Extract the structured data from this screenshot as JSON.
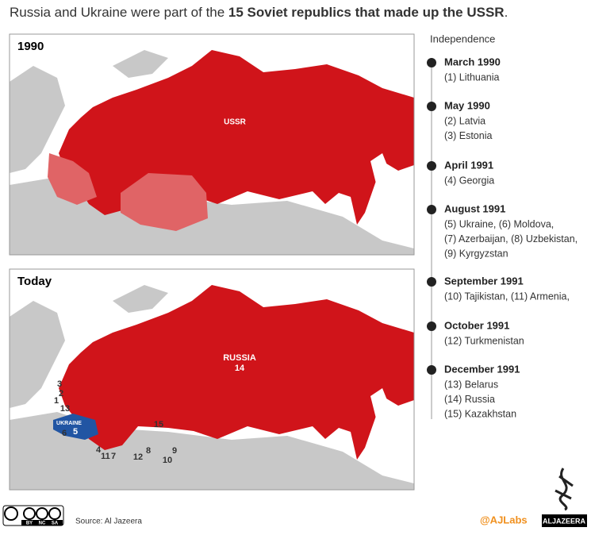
{
  "title": {
    "prefix": "Russia and Ukraine were part of the ",
    "bold": "15 Soviet republics that made up the USSR",
    "suffix": "."
  },
  "map_1990": {
    "label": "1990",
    "country_label": "USSR"
  },
  "map_today": {
    "label": "Today",
    "russia_label": "RUSSIA",
    "russia_number": "14",
    "ukraine_label": "UKRAINE",
    "ukraine_number": "5",
    "numbers": [
      "3",
      "2",
      "1",
      "13",
      "6",
      "4",
      "11",
      "7",
      "12",
      "8",
      "9",
      "10",
      "15"
    ]
  },
  "timeline": {
    "heading": "Independence",
    "events": [
      {
        "date": "March 1990",
        "lines": [
          "(1) Lithuania"
        ]
      },
      {
        "date": "May 1990",
        "lines": [
          "(2) Latvia",
          "(3) Estonia"
        ]
      },
      {
        "date": "April 1991",
        "lines": [
          "(4) Georgia"
        ]
      },
      {
        "date": "August 1991",
        "lines": [
          "(5) Ukraine,  (6) Moldova,",
          "(7) Azerbaijan, (8) Uzbekistan,",
          "(9) Kyrgyzstan"
        ]
      },
      {
        "date": "September 1991",
        "lines": [
          "(10) Tajikistan, (11) Armenia,"
        ]
      },
      {
        "date": "October 1991",
        "lines": [
          "(12) Turkmenistan"
        ]
      },
      {
        "date": "December 1991",
        "lines": [
          "(13) Belarus",
          "(14) Russia",
          "(15) Kazakhstan"
        ]
      }
    ]
  },
  "footer": {
    "license": [
      "BY",
      "NC",
      "SA"
    ],
    "source": "Source: Al Jazeera",
    "handle": "@AJLabs",
    "brand": "ALJAZEERA"
  }
}
